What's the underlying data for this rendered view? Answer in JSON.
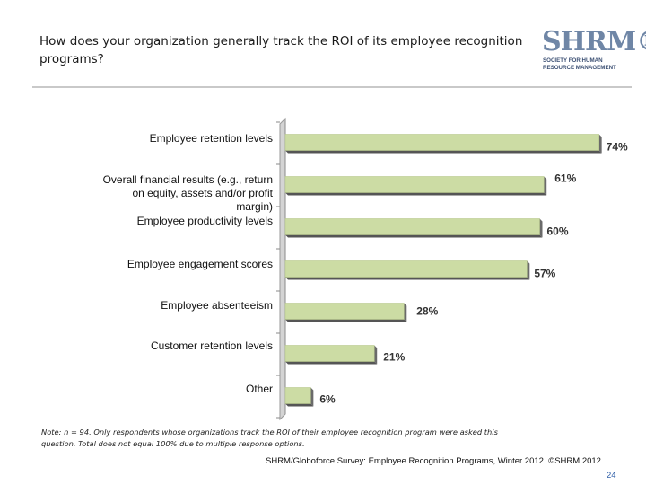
{
  "header": {
    "title": "How does your organization generally track the ROI of its employee recognition programs?"
  },
  "logo": {
    "mark": "SHRM",
    "registered": "®",
    "line1": "SOCIETY FOR HUMAN",
    "line2": "RESOURCE MANAGEMENT"
  },
  "chart_data": {
    "type": "bar",
    "orientation": "horizontal",
    "title": "How does your organization generally track the ROI of its employee recognition programs?",
    "categories": [
      "Employee retention levels",
      "Overall financial results (e.g., return on equity, assets and/or profit margin)",
      "Employee productivity levels",
      "Employee engagement scores",
      "Employee absenteeism",
      "Customer retention levels",
      "Other"
    ],
    "values": [
      74,
      61,
      60,
      57,
      28,
      21,
      6
    ],
    "labels": [
      "74%",
      "61%",
      "60%",
      "57%",
      "28%",
      "21%",
      "6%"
    ],
    "xlim": [
      0,
      80
    ],
    "unit": "%",
    "bar_color": "#ccdca4",
    "grid": false
  },
  "note": "Note: n = 94. Only respondents whose organizations track the ROI of their employee recognition program were asked this question. Total does not equal 100% due to multiple response options.",
  "footer": "SHRM/Globoforce Survey: Employee Recognition Programs, Winter 2012. ©SHRM 2012",
  "page_number": "24"
}
